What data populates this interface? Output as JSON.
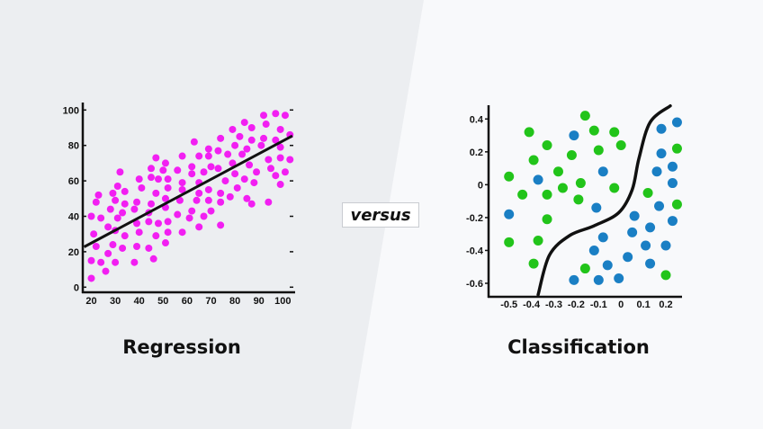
{
  "versus_label": "versus",
  "colors": {
    "left_bg": "#eceef1",
    "right_bg": "#f8f9fb",
    "regression_points": "#f21ff2",
    "line": "#111111",
    "class_green": "#22c41a",
    "class_blue": "#1a7fc4"
  },
  "chart_data": [
    {
      "type": "scatter",
      "title": "Regression",
      "xlim": [
        17,
        104
      ],
      "ylim": [
        -3,
        103
      ],
      "x_ticks": [
        "20",
        "30",
        "40",
        "50",
        "60",
        "70",
        "80",
        "90",
        "100"
      ],
      "y_ticks": [
        "0",
        "20",
        "40",
        "60",
        "80",
        "100"
      ],
      "trend_line": {
        "slope": 0.72,
        "intercept": 10.5,
        "x_range": [
          17,
          104
        ]
      },
      "points": [
        [
          20,
          40
        ],
        [
          21,
          30
        ],
        [
          20,
          15
        ],
        [
          20,
          5
        ],
        [
          22,
          23
        ],
        [
          22,
          48
        ],
        [
          23,
          52
        ],
        [
          24,
          39
        ],
        [
          24,
          14
        ],
        [
          28,
          44
        ],
        [
          27,
          34
        ],
        [
          27,
          19
        ],
        [
          26,
          9
        ],
        [
          29,
          53
        ],
        [
          30,
          49
        ],
        [
          29,
          24
        ],
        [
          31,
          57
        ],
        [
          31,
          39
        ],
        [
          30,
          32
        ],
        [
          30,
          14
        ],
        [
          32,
          65
        ],
        [
          33,
          42
        ],
        [
          34,
          47
        ],
        [
          34,
          54
        ],
        [
          34,
          29
        ],
        [
          33,
          22
        ],
        [
          38,
          14
        ],
        [
          38,
          44
        ],
        [
          39,
          48
        ],
        [
          40,
          61
        ],
        [
          39,
          36
        ],
        [
          39,
          23
        ],
        [
          40,
          31
        ],
        [
          41,
          56
        ],
        [
          45,
          67
        ],
        [
          45,
          62
        ],
        [
          45,
          47
        ],
        [
          44,
          37
        ],
        [
          44,
          22
        ],
        [
          44,
          42
        ],
        [
          46,
          16
        ],
        [
          47,
          73
        ],
        [
          47,
          53
        ],
        [
          48,
          61
        ],
        [
          48,
          36
        ],
        [
          47,
          29
        ],
        [
          50,
          66
        ],
        [
          51,
          70
        ],
        [
          51,
          50
        ],
        [
          51,
          45
        ],
        [
          52,
          37
        ],
        [
          51,
          25
        ],
        [
          52,
          61
        ],
        [
          52,
          56
        ],
        [
          52,
          31
        ],
        [
          56,
          66
        ],
        [
          56,
          41
        ],
        [
          58,
          74
        ],
        [
          58,
          59
        ],
        [
          58,
          55
        ],
        [
          57,
          49
        ],
        [
          58,
          31
        ],
        [
          62,
          64
        ],
        [
          62,
          68
        ],
        [
          63,
          82
        ],
        [
          62,
          43
        ],
        [
          61,
          39
        ],
        [
          65,
          74
        ],
        [
          65,
          59
        ],
        [
          65,
          53
        ],
        [
          64,
          49
        ],
        [
          65,
          34
        ],
        [
          67,
          40
        ],
        [
          67,
          65
        ],
        [
          69,
          74
        ],
        [
          69,
          78
        ],
        [
          69,
          55
        ],
        [
          69,
          49
        ],
        [
          70,
          43
        ],
        [
          70,
          68
        ],
        [
          73,
          77
        ],
        [
          74,
          84
        ],
        [
          73,
          67
        ],
        [
          74,
          53
        ],
        [
          74,
          48
        ],
        [
          74,
          35
        ],
        [
          76,
          60
        ],
        [
          77,
          75
        ],
        [
          78,
          51
        ],
        [
          79,
          89
        ],
        [
          80,
          80
        ],
        [
          79,
          70
        ],
        [
          80,
          64
        ],
        [
          81,
          56
        ],
        [
          82,
          85
        ],
        [
          83,
          75
        ],
        [
          84,
          93
        ],
        [
          84,
          61
        ],
        [
          85,
          78
        ],
        [
          86,
          69
        ],
        [
          85,
          50
        ],
        [
          87,
          83
        ],
        [
          87,
          90
        ],
        [
          87,
          47
        ],
        [
          89,
          65
        ],
        [
          88,
          59
        ],
        [
          91,
          80
        ],
        [
          92,
          84
        ],
        [
          92,
          97
        ],
        [
          93,
          92
        ],
        [
          94,
          72
        ],
        [
          95,
          67
        ],
        [
          94,
          48
        ],
        [
          97,
          63
        ],
        [
          97,
          98
        ],
        [
          97,
          83
        ],
        [
          99,
          79
        ],
        [
          99,
          89
        ],
        [
          99,
          73
        ],
        [
          99,
          58
        ],
        [
          101,
          97
        ],
        [
          101,
          65
        ],
        [
          103,
          72
        ],
        [
          103,
          86
        ]
      ]
    },
    {
      "type": "scatter",
      "title": "Classification",
      "xlim": [
        -0.57,
        0.25
      ],
      "ylim": [
        -0.65,
        0.46
      ],
      "x_ticks": [
        "-0.5",
        "-0.4",
        "-0.3",
        "-0.2",
        "-0.1",
        "0",
        "0.1",
        "0.2"
      ],
      "y_ticks": [
        "0.4",
        "0.2",
        "0",
        "-0.2",
        "-0.4",
        "-0.6"
      ],
      "decision_boundary": [
        [
          -0.37,
          -0.67
        ],
        [
          -0.32,
          -0.43
        ],
        [
          -0.23,
          -0.31
        ],
        [
          -0.12,
          -0.25
        ],
        [
          -0.01,
          -0.17
        ],
        [
          0.05,
          -0.03
        ],
        [
          0.08,
          0.16
        ],
        [
          0.13,
          0.38
        ],
        [
          0.22,
          0.48
        ]
      ],
      "series": [
        {
          "class": "green",
          "points": [
            [
              -0.5,
              0.05
            ],
            [
              -0.41,
              0.32
            ],
            [
              -0.16,
              0.42
            ],
            [
              -0.12,
              0.33
            ],
            [
              -0.03,
              0.32
            ],
            [
              -0.33,
              0.24
            ],
            [
              0.0,
              0.24
            ],
            [
              -0.22,
              0.18
            ],
            [
              -0.1,
              0.21
            ],
            [
              -0.39,
              0.15
            ],
            [
              -0.28,
              0.08
            ],
            [
              -0.18,
              0.01
            ],
            [
              -0.26,
              -0.02
            ],
            [
              -0.03,
              -0.02
            ],
            [
              -0.44,
              -0.06
            ],
            [
              -0.33,
              -0.06
            ],
            [
              -0.19,
              -0.09
            ],
            [
              -0.33,
              -0.21
            ],
            [
              -0.5,
              -0.35
            ],
            [
              -0.37,
              -0.34
            ],
            [
              -0.39,
              -0.48
            ],
            [
              -0.16,
              -0.51
            ],
            [
              0.12,
              -0.05
            ],
            [
              0.25,
              -0.12
            ],
            [
              0.25,
              0.22
            ],
            [
              0.2,
              -0.55
            ]
          ]
        },
        {
          "class": "blue",
          "points": [
            [
              -0.21,
              0.3
            ],
            [
              -0.08,
              0.08
            ],
            [
              -0.37,
              0.03
            ],
            [
              -0.5,
              -0.18
            ],
            [
              -0.11,
              -0.14
            ],
            [
              0.18,
              0.34
            ],
            [
              0.25,
              0.38
            ],
            [
              0.18,
              0.19
            ],
            [
              0.23,
              0.11
            ],
            [
              0.16,
              0.08
            ],
            [
              0.23,
              0.01
            ],
            [
              0.17,
              -0.13
            ],
            [
              0.23,
              -0.22
            ],
            [
              0.06,
              -0.19
            ],
            [
              0.13,
              -0.26
            ],
            [
              0.05,
              -0.29
            ],
            [
              -0.08,
              -0.32
            ],
            [
              0.11,
              -0.37
            ],
            [
              0.2,
              -0.37
            ],
            [
              -0.12,
              -0.4
            ],
            [
              0.03,
              -0.44
            ],
            [
              -0.06,
              -0.49
            ],
            [
              0.13,
              -0.48
            ],
            [
              -0.21,
              -0.58
            ],
            [
              -0.1,
              -0.58
            ],
            [
              -0.01,
              -0.57
            ]
          ]
        }
      ]
    }
  ]
}
